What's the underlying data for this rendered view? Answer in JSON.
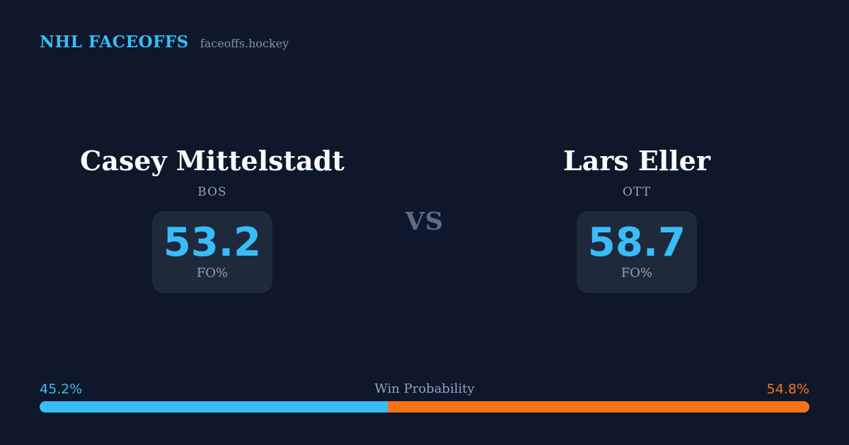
{
  "header": {
    "title": "NHL FACEOFFS",
    "subtitle": "faceoffs.hockey"
  },
  "matchup": {
    "vs_label": "VS",
    "players": [
      {
        "name": "Casey Mittelstadt",
        "team": "BOS",
        "stat_value": "53.2",
        "stat_label": "FO%"
      },
      {
        "name": "Lars Eller",
        "team": "OTT",
        "stat_value": "58.7",
        "stat_label": "FO%"
      }
    ]
  },
  "win_probability": {
    "label": "Win Probability",
    "left_text": "45.2%",
    "right_text": "54.8%",
    "left_value": 45.2,
    "right_value": 54.8
  },
  "colors": {
    "background": "#0f172a",
    "panel": "#1e293b",
    "accent_blue": "#38bdf8",
    "accent_orange": "#f97316",
    "muted_text": "#94a3b8",
    "player_text": "#f8fafc"
  },
  "chart_data": {
    "type": "bar",
    "title": "Win Probability",
    "categories": [
      "Casey Mittelstadt (BOS)",
      "Lars Eller (OTT)"
    ],
    "values": [
      45.2,
      54.8
    ],
    "unit": "%",
    "colors": [
      "#38bdf8",
      "#f97316"
    ],
    "legend_position": "none",
    "grid": false,
    "xlim": [
      0,
      100
    ],
    "faceoff_pct": {
      "categories": [
        "Casey Mittelstadt (BOS)",
        "Lars Eller (OTT)"
      ],
      "values": [
        53.2,
        58.7
      ],
      "label": "FO%"
    }
  }
}
